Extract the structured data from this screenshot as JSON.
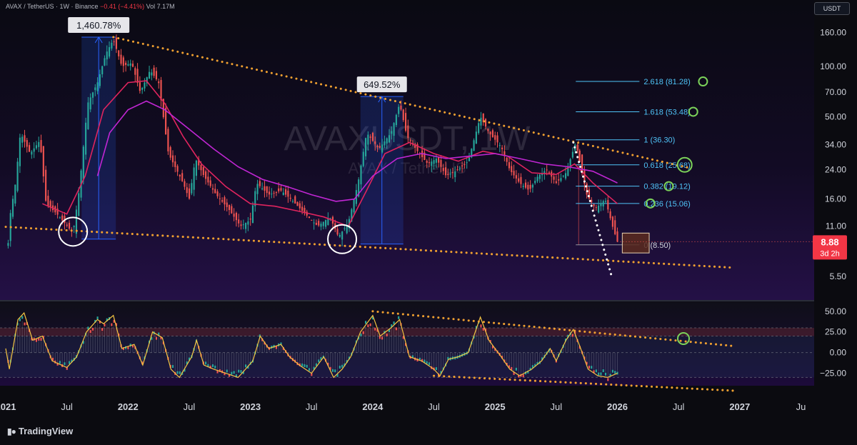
{
  "header": {
    "symbol": "AVAX / TetherUS · 1W · Binance",
    "change": "−0.41 (−4.41%)",
    "volume": "Vol 7.17M"
  },
  "quote_currency": "USDT",
  "watermark": {
    "title": "AVAXUSDT, 1W",
    "subtitle": "AVAX / TetherUS"
  },
  "brand": "TradingView",
  "colors": {
    "bull": "#26a69a",
    "bear": "#ef5350",
    "trend": "#f0a030",
    "fib": "#4fc3f7",
    "ma_fast": "#e0245e",
    "ma_slow": "#c026d3",
    "circle_green": "#7cd35a",
    "bg": "#1a0b33"
  },
  "chart_data": [
    {
      "type": "candlestick",
      "title": "AVAXUSDT, 1W",
      "y_scale": "log",
      "ylim": [
        4.6,
        190
      ],
      "x_range": [
        "2021-01",
        "2027-08"
      ],
      "price_axis_ticks": [
        160,
        100,
        70,
        50,
        34,
        24,
        16,
        11,
        5.5
      ],
      "price_axis_labels": [
        "160.00",
        "100.00",
        "70.00",
        "50.00",
        "34.00",
        "24.00",
        "16.00",
        "11.00",
        "5.50"
      ],
      "time_axis": [
        {
          "label": "2021",
          "t": 2021.0
        },
        {
          "label": "Jul",
          "t": 2021.5
        },
        {
          "label": "2022",
          "t": 2022.0
        },
        {
          "label": "Jul",
          "t": 2022.5
        },
        {
          "label": "2023",
          "t": 2023.0
        },
        {
          "label": "Jul",
          "t": 2023.5
        },
        {
          "label": "2024",
          "t": 2024.0
        },
        {
          "label": "Jul",
          "t": 2024.5
        },
        {
          "label": "2025",
          "t": 2025.0
        },
        {
          "label": "Jul",
          "t": 2025.5
        },
        {
          "label": "2026",
          "t": 2026.0
        },
        {
          "label": "Jul",
          "t": 2026.5
        },
        {
          "label": "2027",
          "t": 2027.0
        },
        {
          "label": "Ju",
          "t": 2027.5
        }
      ],
      "price_path": [
        [
          2021.0,
          4.6
        ],
        [
          2021.03,
          12
        ],
        [
          2021.08,
          20
        ],
        [
          2021.12,
          40
        ],
        [
          2021.2,
          30
        ],
        [
          2021.28,
          36
        ],
        [
          2021.33,
          15
        ],
        [
          2021.42,
          13
        ],
        [
          2021.55,
          10
        ],
        [
          2021.6,
          18
        ],
        [
          2021.67,
          60
        ],
        [
          2021.75,
          80
        ],
        [
          2021.82,
          120
        ],
        [
          2021.88,
          145
        ],
        [
          2021.95,
          100
        ],
        [
          2022.03,
          105
        ],
        [
          2022.1,
          70
        ],
        [
          2022.18,
          95
        ],
        [
          2022.25,
          80
        ],
        [
          2022.33,
          30
        ],
        [
          2022.45,
          20
        ],
        [
          2022.5,
          16
        ],
        [
          2022.55,
          28
        ],
        [
          2022.62,
          22
        ],
        [
          2022.72,
          17
        ],
        [
          2022.82,
          14
        ],
        [
          2022.92,
          11
        ],
        [
          2023.0,
          12
        ],
        [
          2023.05,
          20
        ],
        [
          2023.15,
          17
        ],
        [
          2023.25,
          18
        ],
        [
          2023.33,
          16
        ],
        [
          2023.45,
          13
        ],
        [
          2023.55,
          11
        ],
        [
          2023.65,
          12.5
        ],
        [
          2023.72,
          9.5
        ],
        [
          2023.8,
          11.5
        ],
        [
          2023.88,
          20
        ],
        [
          2023.95,
          40
        ],
        [
          2024.05,
          32
        ],
        [
          2024.15,
          40
        ],
        [
          2024.22,
          60
        ],
        [
          2024.28,
          38
        ],
        [
          2024.38,
          30
        ],
        [
          2024.45,
          26
        ],
        [
          2024.52,
          28
        ],
        [
          2024.6,
          22
        ],
        [
          2024.7,
          24
        ],
        [
          2024.78,
          27
        ],
        [
          2024.88,
          50
        ],
        [
          2024.95,
          40
        ],
        [
          2025.05,
          33
        ],
        [
          2025.12,
          24
        ],
        [
          2025.2,
          20
        ],
        [
          2025.28,
          18
        ],
        [
          2025.35,
          22
        ],
        [
          2025.42,
          24
        ],
        [
          2025.5,
          20
        ],
        [
          2025.58,
          23
        ],
        [
          2025.63,
          30
        ],
        [
          2025.66,
          35
        ],
        [
          2025.7,
          25
        ],
        [
          2025.75,
          17
        ],
        [
          2025.82,
          14
        ],
        [
          2025.9,
          16
        ],
        [
          2025.96,
          11
        ],
        [
          2026.0,
          8.88
        ]
      ],
      "moving_averages": [
        {
          "color": "#e0245e",
          "path": [
            [
              2021.3,
              15
            ],
            [
              2021.5,
              13
            ],
            [
              2021.65,
              22
            ],
            [
              2021.8,
              55
            ],
            [
              2022.0,
              80
            ],
            [
              2022.15,
              82
            ],
            [
              2022.3,
              60
            ],
            [
              2022.45,
              38
            ],
            [
              2022.6,
              26
            ],
            [
              2022.8,
              19
            ],
            [
              2023.0,
              15
            ],
            [
              2023.2,
              14.5
            ],
            [
              2023.4,
              13.5
            ],
            [
              2023.6,
              12.5
            ],
            [
              2023.8,
              11
            ],
            [
              2023.95,
              18
            ],
            [
              2024.1,
              30
            ],
            [
              2024.3,
              35
            ],
            [
              2024.5,
              30
            ],
            [
              2024.7,
              27
            ],
            [
              2024.9,
              31
            ],
            [
              2025.1,
              29
            ],
            [
              2025.3,
              23
            ],
            [
              2025.5,
              22.5
            ],
            [
              2025.65,
              26
            ],
            [
              2025.8,
              20
            ],
            [
              2026.0,
              15
            ]
          ]
        },
        {
          "color": "#c026d3",
          "path": [
            [
              2021.75,
              22
            ],
            [
              2021.85,
              40
            ],
            [
              2022.0,
              55
            ],
            [
              2022.15,
              62
            ],
            [
              2022.3,
              55
            ],
            [
              2022.5,
              42
            ],
            [
              2022.7,
              32
            ],
            [
              2022.9,
              25
            ],
            [
              2023.1,
              21
            ],
            [
              2023.3,
              19
            ],
            [
              2023.5,
              17
            ],
            [
              2023.7,
              15.5
            ],
            [
              2023.85,
              16
            ],
            [
              2024.0,
              22
            ],
            [
              2024.2,
              28
            ],
            [
              2024.4,
              30
            ],
            [
              2024.6,
              28
            ],
            [
              2024.8,
              29
            ],
            [
              2025.0,
              30
            ],
            [
              2025.2,
              28
            ],
            [
              2025.4,
              26
            ],
            [
              2025.6,
              25
            ],
            [
              2025.8,
              23.5
            ],
            [
              2026.0,
              20
            ]
          ]
        }
      ],
      "trendlines": [
        {
          "from": [
            2021.88,
            150
          ],
          "to": [
            2026.6,
            24.5
          ],
          "style": "dotted",
          "color": "#f0a030"
        },
        {
          "from": [
            2021.0,
            10.9
          ],
          "to": [
            2026.95,
            6.2
          ],
          "style": "dotted",
          "color": "#f0a030"
        },
        {
          "from": [
            2025.64,
            35
          ],
          "to": [
            2025.95,
            5.6
          ],
          "style": "dotted",
          "color": "#ffffff"
        }
      ],
      "measure_boxes": [
        {
          "label": "1,460.78%",
          "t0": 2021.62,
          "t1": 2021.9,
          "p0": 9.2,
          "p1": 150
        },
        {
          "label": "649.52%",
          "t0": 2023.9,
          "t1": 2024.25,
          "p0": 8.6,
          "p1": 66
        }
      ],
      "fibonacci": {
        "t0": 2025.66,
        "t1": 2026.18,
        "levels": [
          {
            "ratio": "2.618",
            "price": 81.28,
            "label": "2.618 (81.28)"
          },
          {
            "ratio": "1.618",
            "price": 53.48,
            "label": "1.618 (53.48)"
          },
          {
            "ratio": "1",
            "price": 36.3,
            "label": "1 (36.30)"
          },
          {
            "ratio": "0.618",
            "price": 25.68,
            "label": "0.618 (25.68)"
          },
          {
            "ratio": "0.382",
            "price": 19.12,
            "label": "0.382 (19.12)"
          },
          {
            "ratio": "0.236",
            "price": 15.06,
            "label": "0.236 (15.06)"
          },
          {
            "ratio": "0",
            "price": 8.5,
            "label": "0 (8.50)"
          }
        ]
      },
      "target_circles": [
        {
          "t": 2026.7,
          "price": 81.28,
          "color": "#7cd35a"
        },
        {
          "t": 2026.62,
          "price": 53.48,
          "color": "#7cd35a"
        },
        {
          "t": 2026.55,
          "price": 25.68,
          "color": "#7cd35a",
          "size": "large"
        },
        {
          "t": 2026.42,
          "price": 19.12,
          "color": "#7cd35a"
        },
        {
          "t": 2026.27,
          "price": 15.06,
          "color": "#7cd35a"
        }
      ],
      "bottom_circles": [
        {
          "t": 2021.55,
          "price": 10.2
        },
        {
          "t": 2023.75,
          "price": 9.2
        }
      ],
      "zone_box": {
        "t0": 2026.04,
        "t1": 2026.26,
        "p0": 7.6,
        "p1": 10
      },
      "last_price": {
        "value": "8.88",
        "countdown": "3d 2h",
        "price": 8.88
      }
    },
    {
      "type": "oscillator",
      "ylim": [
        -40,
        55
      ],
      "axis_ticks": [
        50,
        25,
        0,
        -25
      ],
      "axis_labels": [
        "50.00",
        "25.00",
        "0.00",
        "−25.00"
      ],
      "overbought": 30,
      "upper": 20,
      "zero": 0,
      "oversold": -30,
      "path": [
        [
          2021.0,
          5
        ],
        [
          2021.03,
          -20
        ],
        [
          2021.1,
          40
        ],
        [
          2021.15,
          48
        ],
        [
          2021.22,
          15
        ],
        [
          2021.3,
          20
        ],
        [
          2021.38,
          -10
        ],
        [
          2021.5,
          -18
        ],
        [
          2021.58,
          -5
        ],
        [
          2021.66,
          25
        ],
        [
          2021.75,
          40
        ],
        [
          2021.8,
          35
        ],
        [
          2021.88,
          45
        ],
        [
          2021.95,
          5
        ],
        [
          2022.05,
          10
        ],
        [
          2022.12,
          -15
        ],
        [
          2022.2,
          25
        ],
        [
          2022.28,
          18
        ],
        [
          2022.35,
          -20
        ],
        [
          2022.42,
          -30
        ],
        [
          2022.52,
          -5
        ],
        [
          2022.56,
          15
        ],
        [
          2022.62,
          -15
        ],
        [
          2022.7,
          -20
        ],
        [
          2022.8,
          -25
        ],
        [
          2022.9,
          -30
        ],
        [
          2023.02,
          -10
        ],
        [
          2023.08,
          20
        ],
        [
          2023.15,
          5
        ],
        [
          2023.25,
          10
        ],
        [
          2023.32,
          -5
        ],
        [
          2023.4,
          -15
        ],
        [
          2023.5,
          -25
        ],
        [
          2023.6,
          -5
        ],
        [
          2023.68,
          -30
        ],
        [
          2023.75,
          -20
        ],
        [
          2023.82,
          -5
        ],
        [
          2023.9,
          25
        ],
        [
          2024.0,
          45
        ],
        [
          2024.06,
          20
        ],
        [
          2024.15,
          30
        ],
        [
          2024.22,
          40
        ],
        [
          2024.3,
          -5
        ],
        [
          2024.4,
          -10
        ],
        [
          2024.5,
          -20
        ],
        [
          2024.55,
          -28
        ],
        [
          2024.62,
          -8
        ],
        [
          2024.7,
          -5
        ],
        [
          2024.78,
          0
        ],
        [
          2024.88,
          43
        ],
        [
          2024.95,
          15
        ],
        [
          2025.05,
          -5
        ],
        [
          2025.12,
          -20
        ],
        [
          2025.2,
          -28
        ],
        [
          2025.3,
          -20
        ],
        [
          2025.38,
          -10
        ],
        [
          2025.45,
          5
        ],
        [
          2025.5,
          -10
        ],
        [
          2025.58,
          15
        ],
        [
          2025.64,
          28
        ],
        [
          2025.7,
          5
        ],
        [
          2025.76,
          -20
        ],
        [
          2025.84,
          -28
        ],
        [
          2025.92,
          -30
        ],
        [
          2026.0,
          -25
        ]
      ],
      "trendlines": [
        {
          "from": [
            2024.0,
            50
          ],
          "to": [
            2026.95,
            8
          ],
          "style": "dotted",
          "color": "#f0a030"
        },
        {
          "from": [
            2024.5,
            -28
          ],
          "to": [
            2026.95,
            -46
          ],
          "style": "dotted",
          "color": "#f0a030"
        }
      ],
      "target_circle": {
        "t": 2026.54,
        "value": 17,
        "color": "#7cd35a"
      }
    }
  ]
}
